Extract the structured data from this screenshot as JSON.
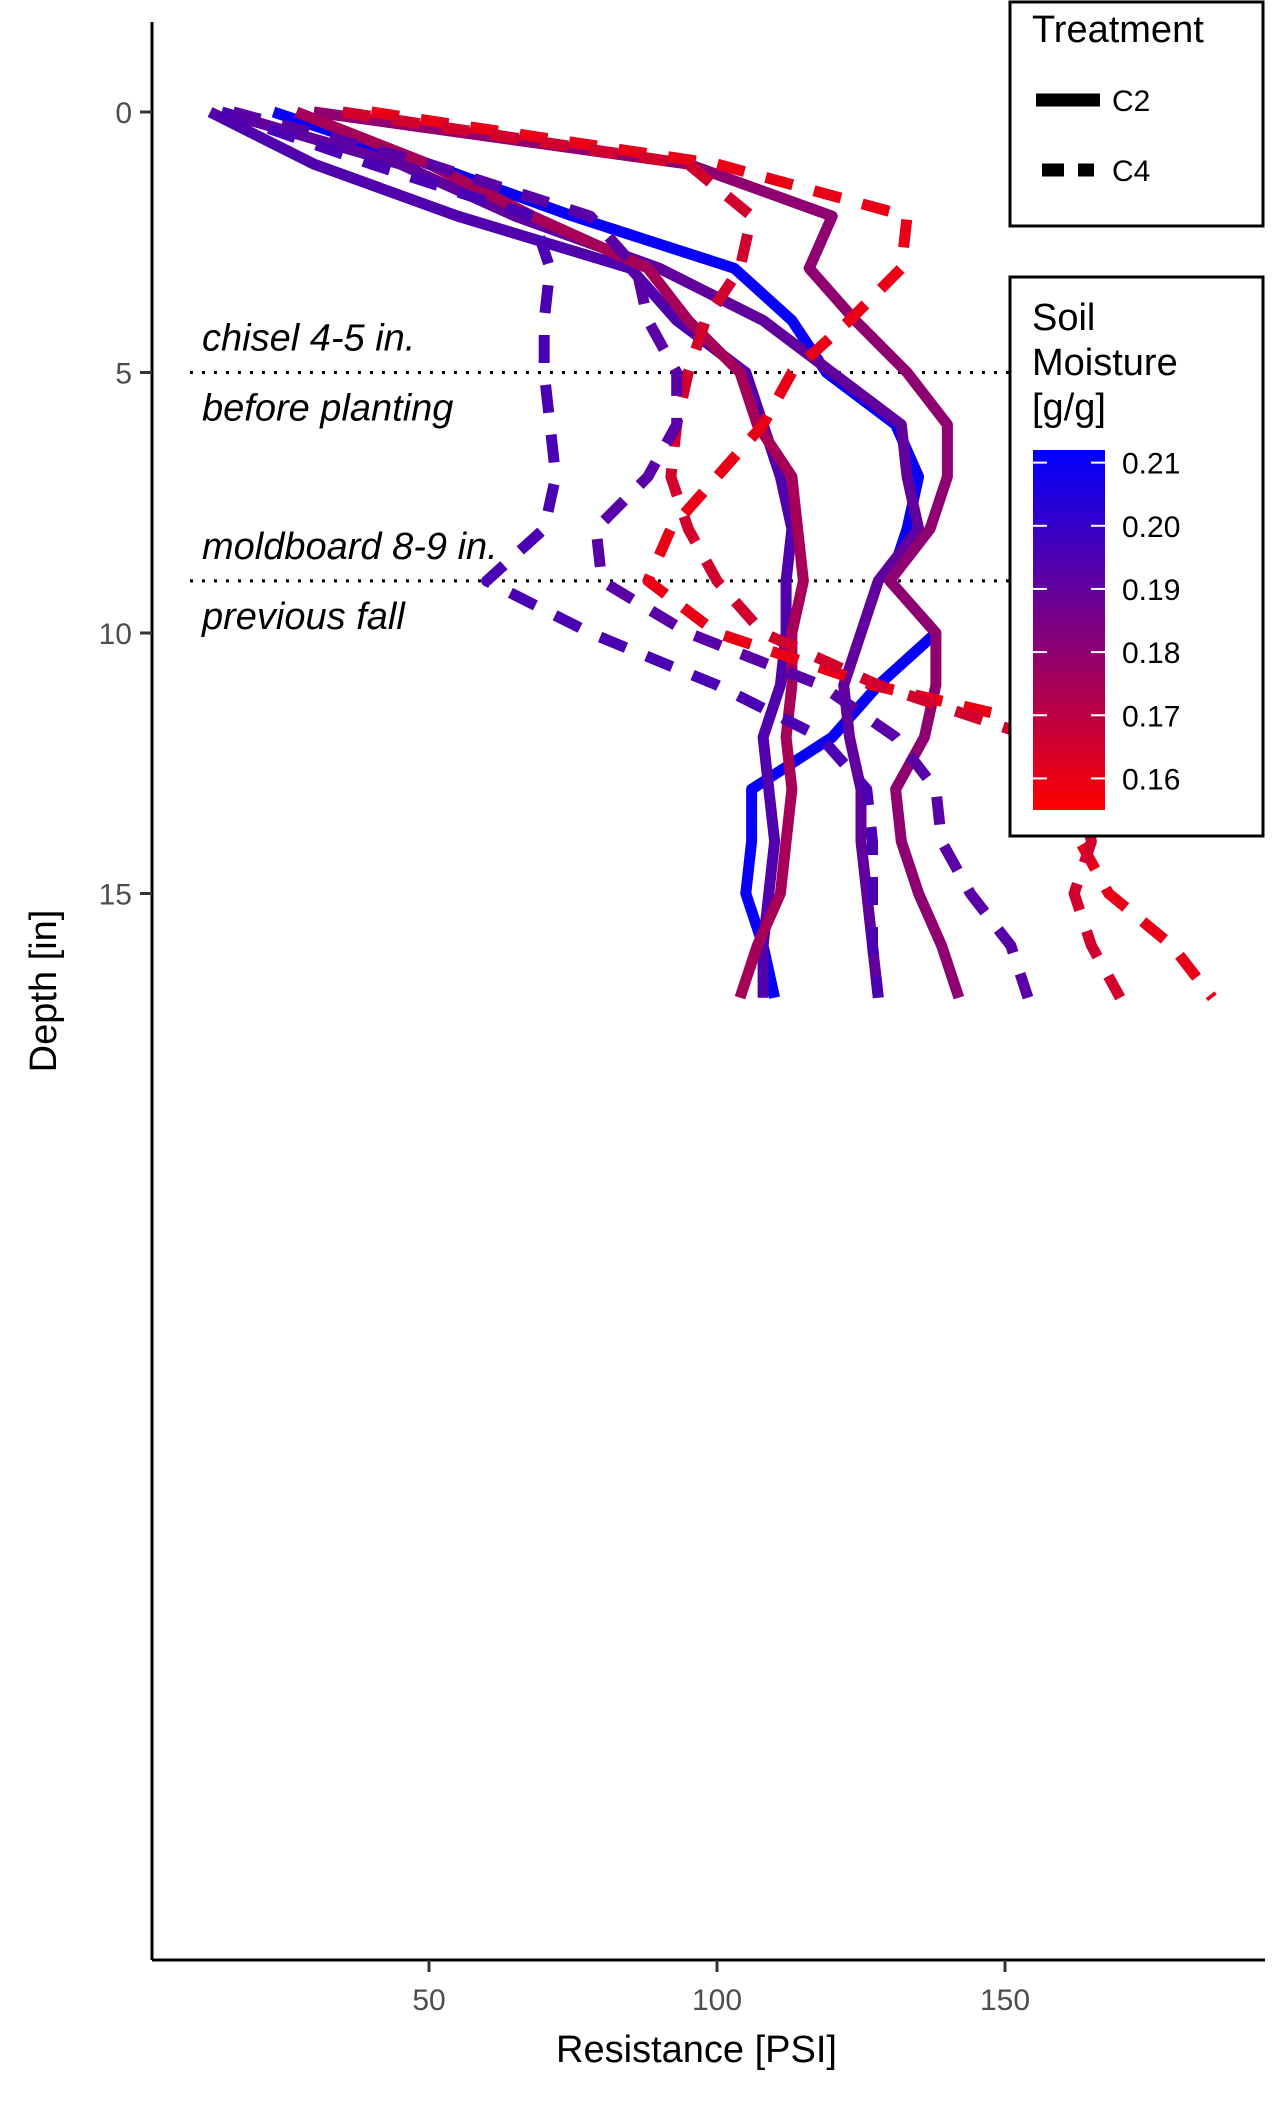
{
  "chart_data": {
    "type": "line",
    "title": "",
    "xlabel": "Resistance [PSI]",
    "ylabel": "Depth [in]",
    "xlim": [
      0,
      190
    ],
    "ylim": [
      18,
      -0.8
    ],
    "y_reversed": true,
    "grid": false,
    "x_ticks": [
      50,
      100,
      150
    ],
    "x_tick_labels": [
      "50",
      "100",
      "150"
    ],
    "y_ticks": [
      0,
      5,
      10,
      15
    ],
    "y_tick_labels": [
      "0",
      "5",
      "10",
      "15"
    ],
    "reference_lines": [
      {
        "y": 5,
        "style": "dotted",
        "label_above": "chisel 4-5 in.",
        "label_below": "before planting"
      },
      {
        "y": 9.0,
        "style": "dotted",
        "label_above": "moldboard 8-9 in.",
        "label_below": "previous fall"
      }
    ],
    "depths": [
      0,
      1,
      2,
      3,
      4,
      5,
      6,
      7,
      8,
      9,
      10,
      11,
      12,
      13,
      14,
      15,
      16,
      17
    ],
    "legend": {
      "treatment": {
        "title": "Treatment",
        "entries": [
          {
            "label": "C2",
            "dash": "solid"
          },
          {
            "label": "C4",
            "dash": "dashed"
          }
        ]
      },
      "moisture": {
        "title_lines": [
          "Soil",
          "Moisture",
          "[g/g]"
        ],
        "ticks": [
          0.21,
          0.2,
          0.19,
          0.18,
          0.17,
          0.16
        ],
        "tick_labels": [
          "0.21",
          "0.20",
          "0.19",
          "0.18",
          "0.17",
          "0.16"
        ],
        "range": [
          0.155,
          0.212
        ],
        "color_low": "#ff0000",
        "color_high": "#0000ff"
      },
      "placement": "right"
    },
    "series": [
      {
        "treatment": "C2",
        "moisture": 0.21,
        "x": [
          23,
          50,
          75,
          103,
          113,
          119,
          131,
          135,
          133,
          130,
          138,
          128,
          120,
          106,
          106,
          105,
          108,
          110
        ]
      },
      {
        "treatment": "C2",
        "moisture": 0.194,
        "x": [
          12,
          30,
          55,
          85,
          93,
          105,
          108,
          111,
          113,
          112,
          112,
          111,
          108,
          109,
          110,
          109,
          108,
          108
        ]
      },
      {
        "treatment": "C2",
        "moisture": 0.19,
        "x": [
          14,
          45,
          65,
          90,
          108,
          120,
          132,
          133,
          135,
          128,
          125,
          122,
          123,
          125,
          125,
          126,
          127,
          128
        ]
      },
      {
        "treatment": "C2",
        "moisture": 0.18,
        "x": [
          30,
          95,
          120,
          116,
          124,
          133,
          140,
          140,
          137,
          130,
          138,
          138,
          136,
          131,
          132,
          135,
          139,
          142
        ]
      },
      {
        "treatment": "C2",
        "moisture": 0.175,
        "x": [
          27,
          50,
          68,
          88,
          95,
          104,
          107,
          113,
          114,
          115,
          113,
          113,
          112,
          113,
          112,
          111,
          107,
          104
        ]
      },
      {
        "treatment": "C4",
        "moisture": 0.16,
        "x": [
          40,
          100,
          133,
          132,
          123,
          113,
          108,
          100,
          92,
          88,
          100,
          127,
          166,
          167,
          163,
          168,
          179,
          186
        ]
      },
      {
        "treatment": "C4",
        "moisture": 0.165,
        "x": [
          35,
          95,
          106,
          104,
          98,
          95,
          93,
          92,
          95,
          100,
          108,
          128,
          155,
          163,
          165,
          162,
          165,
          170
        ]
      },
      {
        "treatment": "C4",
        "moisture": 0.195,
        "x": [
          14,
          40,
          68,
          71,
          70,
          70,
          71,
          72,
          70,
          60,
          78,
          100,
          118,
          126,
          127,
          127,
          127,
          128
        ]
      },
      {
        "treatment": "C4",
        "moisture": 0.192,
        "x": [
          16,
          50,
          78,
          86,
          88,
          93,
          93,
          88,
          79,
          80,
          95,
          118,
          131,
          138,
          139,
          144,
          151,
          154
        ]
      }
    ]
  }
}
